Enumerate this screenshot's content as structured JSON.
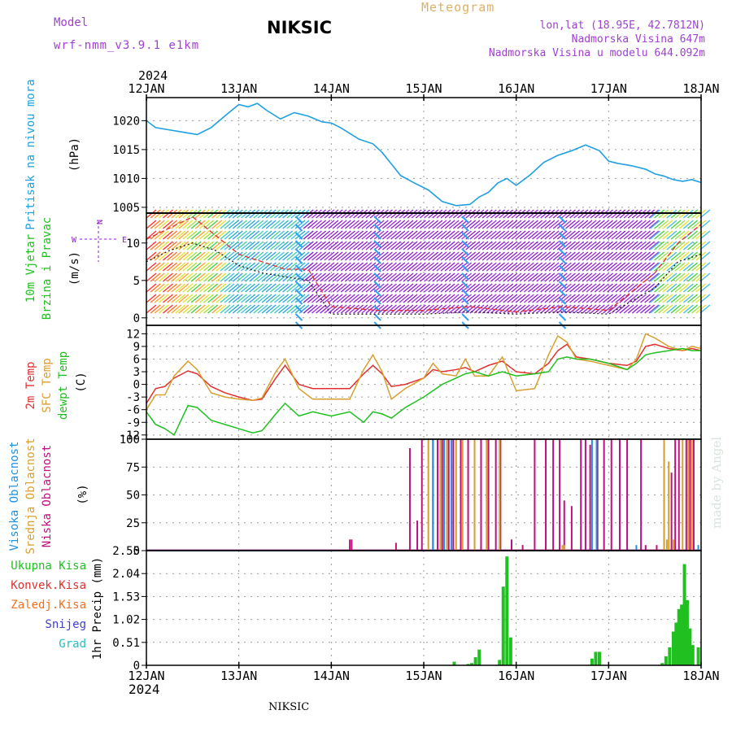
{
  "header": {
    "model_label": "Model",
    "model_name": "wrf-nmm_v3.9.1 e1km",
    "title": "NIKSIC",
    "meteogram_label": "Meteogram",
    "lonlat": "lon,lat (18.95E, 42.7812N)",
    "altitude": "Nadmorska Visina 647m",
    "altitude_model": "Nadmorska Visina u modelu 644.092m",
    "year_top": "2024",
    "year_bottom": "2024",
    "station_footer": "NIKSIC",
    "credit": "made by Angel"
  },
  "colors": {
    "pressure": "#1fa0e0",
    "temp2m": "#e03030",
    "sfc_temp": "#d8a030",
    "dewpt": "#20c020",
    "cloud_high": "#2090e0",
    "cloud_mid": "#d8a030",
    "cloud_low": "#c01080",
    "precip_total": "#20c020",
    "label_total": "#20c020",
    "label_conv": "#e03030",
    "label_froz": "#f07020",
    "label_snow": "#4040d0",
    "label_hail": "#20c0c0",
    "wind_purple": "#9020d0"
  },
  "chart_data": [
    {
      "id": "pressure",
      "type": "line",
      "ylabel": [
        "Pritisak na nivou mora",
        "(hPa)"
      ],
      "ylim": [
        1004,
        1024
      ],
      "yticks": [
        1005,
        1010,
        1015,
        1020
      ],
      "x": [
        0,
        0.1,
        0.25,
        0.4,
        0.55,
        0.7,
        0.9,
        1.0,
        1.1,
        1.2,
        1.3,
        1.45,
        1.6,
        1.75,
        1.9,
        2.0,
        2.1,
        2.3,
        2.45,
        2.55,
        2.65,
        2.75,
        2.9,
        3.05,
        3.2,
        3.35,
        3.5,
        3.6,
        3.7,
        3.8,
        3.9,
        4.0,
        4.15,
        4.3,
        4.45,
        4.6,
        4.75,
        4.9,
        5.0,
        5.1,
        5.25,
        5.4,
        5.5,
        5.6,
        5.7,
        5.8,
        5.9,
        6.0
      ],
      "series": [
        {
          "values": [
            1020.0,
            1018.8,
            1018.4,
            1018.0,
            1017.6,
            1018.8,
            1021.5,
            1022.8,
            1022.4,
            1023.0,
            1021.8,
            1020.3,
            1021.4,
            1020.8,
            1019.8,
            1019.6,
            1018.8,
            1016.8,
            1016.0,
            1014.5,
            1012.5,
            1010.5,
            1009.2,
            1008.0,
            1006.0,
            1005.3,
            1005.5,
            1006.8,
            1007.6,
            1009.2,
            1010.0,
            1008.8,
            1010.6,
            1012.8,
            1014.0,
            1014.8,
            1015.8,
            1014.8,
            1013.0,
            1012.6,
            1012.2,
            1011.6,
            1010.8,
            1010.4,
            1009.8,
            1009.5,
            1009.8,
            1009.3
          ]
        }
      ]
    },
    {
      "id": "wind",
      "type": "line",
      "ylabel": [
        "10m Vjetar",
        "Brzina i Pravac",
        "(m/s)"
      ],
      "compass": "W  N  E",
      "ylim": [
        -1,
        14
      ],
      "yticks": [
        0,
        5,
        10
      ],
      "x": [
        0,
        0.25,
        0.5,
        0.75,
        1.0,
        1.25,
        1.5,
        1.75,
        2.0,
        2.5,
        3.0,
        3.5,
        4.0,
        4.5,
        5.0,
        5.5,
        5.75,
        6.0
      ],
      "series": [
        {
          "name": "speed",
          "values": [
            10.5,
            12.0,
            13.5,
            11.0,
            8.5,
            7.5,
            6.5,
            6.5,
            1.5,
            1.0,
            1.0,
            1.5,
            0.8,
            1.5,
            1.0,
            6.0,
            10.0,
            12.5
          ]
        },
        {
          "name": "gust",
          "values": [
            7.5,
            9.0,
            10.0,
            9.0,
            7.0,
            6.0,
            5.5,
            5.0,
            0.5,
            0.5,
            0.5,
            0.8,
            0.5,
            0.8,
            0.5,
            4.0,
            7.5,
            8.5
          ]
        }
      ]
    },
    {
      "id": "temperature",
      "type": "line",
      "ylabel": [
        "2m Temp",
        "SFC Temp",
        "dewpt Temp",
        "(C)"
      ],
      "ylim": [
        -13,
        14
      ],
      "yticks": [
        -12,
        -9,
        -6,
        -3,
        0,
        3,
        6,
        9,
        12
      ],
      "x": [
        0,
        0.1,
        0.2,
        0.3,
        0.45,
        0.55,
        0.7,
        0.85,
        1.0,
        1.15,
        1.25,
        1.4,
        1.5,
        1.65,
        1.8,
        2.0,
        2.2,
        2.35,
        2.45,
        2.55,
        2.65,
        2.8,
        3.0,
        3.1,
        3.2,
        3.35,
        3.45,
        3.55,
        3.7,
        3.85,
        4.0,
        4.2,
        4.35,
        4.45,
        4.55,
        4.65,
        4.8,
        5.0,
        5.2,
        5.3,
        5.4,
        5.5,
        5.65,
        5.8,
        5.9,
        6.0
      ],
      "series": [
        {
          "name": "2m Temp",
          "values": [
            -4.5,
            -1.0,
            -0.5,
            1.5,
            3.2,
            2.5,
            -0.5,
            -2.0,
            -3.0,
            -3.8,
            -3.5,
            1.5,
            4.5,
            0.0,
            -1.0,
            -1.0,
            -1.0,
            2.5,
            4.5,
            2.5,
            -0.5,
            0.0,
            1.5,
            3.5,
            3.0,
            3.5,
            4.0,
            3.0,
            4.5,
            5.5,
            3.0,
            2.5,
            5.0,
            8.0,
            9.5,
            6.5,
            6.0,
            5.0,
            4.5,
            5.5,
            9.0,
            9.5,
            8.5,
            8.0,
            8.5,
            8.0
          ]
        },
        {
          "name": "SFC Temp",
          "values": [
            -6.0,
            -2.5,
            -2.5,
            2.0,
            5.5,
            3.5,
            -2.0,
            -3.0,
            -3.5,
            -3.8,
            -3.2,
            3.0,
            6.0,
            -1.0,
            -3.5,
            -3.5,
            -3.5,
            3.5,
            7.0,
            3.0,
            -3.5,
            -1.0,
            1.5,
            5.0,
            2.5,
            2.0,
            6.0,
            2.0,
            2.0,
            6.5,
            -1.5,
            -1.0,
            7.0,
            11.5,
            10.0,
            6.0,
            5.5,
            4.5,
            3.5,
            6.0,
            12.0,
            11.0,
            9.0,
            8.0,
            9.0,
            8.5
          ]
        },
        {
          "name": "dewpt Temp",
          "values": [
            -6.5,
            -9.5,
            -10.5,
            -12.0,
            -5.0,
            -5.5,
            -8.5,
            -9.5,
            -10.5,
            -11.5,
            -11.0,
            -7.0,
            -4.5,
            -7.5,
            -6.5,
            -7.5,
            -6.5,
            -9.0,
            -6.5,
            -7.0,
            -8.0,
            -5.5,
            -3.0,
            -1.5,
            0.0,
            1.5,
            2.5,
            3.0,
            2.0,
            3.0,
            2.0,
            2.5,
            3.0,
            6.0,
            6.5,
            6.0,
            6.0,
            5.0,
            3.5,
            5.0,
            7.0,
            7.5,
            8.0,
            8.5,
            8.0,
            8.0
          ]
        }
      ]
    },
    {
      "id": "clouds",
      "type": "bar",
      "ylabel": [
        "Visoka Oblacnost",
        "Srednja Oblacnost",
        "Niska Oblacnost",
        "(%)"
      ],
      "ylim": [
        0,
        100
      ],
      "yticks": [
        0,
        25,
        50,
        75,
        100
      ],
      "series": [
        {
          "name": "Niska Oblacnost",
          "x": [
            2.2,
            2.22,
            2.7,
            2.85,
            2.93,
            2.98,
            3.1,
            3.15,
            3.2,
            3.27,
            3.32,
            3.4,
            3.48,
            3.55,
            3.62,
            3.7,
            3.78,
            3.83,
            3.95,
            4.07,
            4.2,
            4.32,
            4.4,
            4.47,
            4.52,
            4.6,
            4.7,
            4.75,
            4.8,
            4.88,
            4.95,
            5.03,
            5.12,
            5.2,
            5.35,
            5.4,
            5.52,
            5.6,
            5.68,
            5.72,
            5.76,
            5.84,
            5.88,
            5.92
          ],
          "values": [
            10,
            10,
            7,
            92,
            27,
            100,
            100,
            100,
            100,
            100,
            100,
            100,
            100,
            100,
            100,
            100,
            100,
            100,
            10,
            5,
            100,
            100,
            100,
            100,
            45,
            40,
            100,
            100,
            95,
            100,
            100,
            100,
            100,
            100,
            100,
            5,
            5,
            95,
            70,
            100,
            100,
            100,
            100,
            100
          ]
        },
        {
          "name": "Srednja Oblacnost",
          "x": [
            3.05,
            3.18,
            3.25,
            3.35,
            3.42,
            3.55,
            3.68,
            3.82,
            4.5,
            4.52,
            5.6,
            5.63,
            5.65,
            5.7,
            5.8,
            5.86,
            5.9
          ],
          "values": [
            100,
            100,
            100,
            100,
            100,
            100,
            100,
            100,
            5,
            5,
            100,
            10,
            80,
            10,
            100,
            100,
            100
          ]
        },
        {
          "name": "Visoka Oblacnost",
          "x": [
            3.1,
            3.22,
            3.3,
            4.82,
            4.87,
            5.3,
            5.97
          ],
          "values": [
            100,
            100,
            100,
            100,
            100,
            5,
            5
          ]
        }
      ]
    },
    {
      "id": "precip",
      "type": "bar",
      "ylabel": [
        "1hr Precip (mm)"
      ],
      "legend": [
        "Ukupna Kisa",
        "Konvek.Kisa",
        "Zaledj.Kisa",
        "Snijeg",
        "Grad"
      ],
      "ylim": [
        0,
        2.55
      ],
      "yticks": [
        0,
        0.51,
        1.02,
        1.53,
        2.04,
        2.55
      ],
      "x": [
        3.33,
        3.48,
        3.52,
        3.56,
        3.6,
        3.82,
        3.86,
        3.9,
        3.94,
        4.82,
        4.86,
        4.9,
        5.58,
        5.62,
        5.66,
        5.7,
        5.73,
        5.76,
        5.79,
        5.82,
        5.85,
        5.88,
        5.91,
        5.97
      ],
      "values": [
        0.08,
        0.03,
        0.05,
        0.18,
        0.35,
        0.12,
        1.75,
        2.42,
        0.62,
        0.15,
        0.3,
        0.3,
        0.05,
        0.2,
        0.4,
        0.75,
        0.95,
        1.25,
        1.35,
        2.25,
        1.45,
        0.82,
        0.45,
        0.4
      ]
    }
  ],
  "days": {
    "labels": [
      "12JAN",
      "13JAN",
      "14JAN",
      "15JAN",
      "16JAN",
      "17JAN",
      "18JAN"
    ]
  }
}
